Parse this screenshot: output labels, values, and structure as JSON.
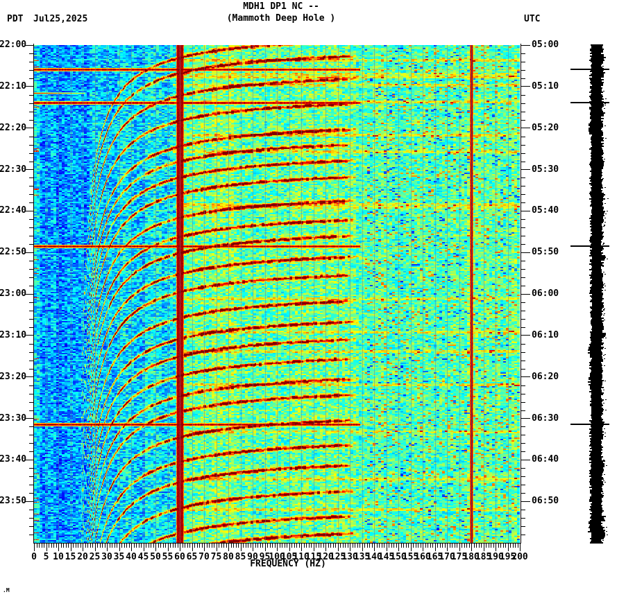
{
  "header": {
    "title_line1": "MDH1 DP1 NC --",
    "title_line2": "(Mammoth Deep Hole )",
    "left_timezone": "PDT",
    "date": "Jul25,2025",
    "right_timezone": "UTC"
  },
  "footer_mark": ".M",
  "axes": {
    "x": {
      "label": "FREQUENCY (HZ)",
      "min_hz": 0,
      "max_hz": 200,
      "major_tick_step_hz": 5,
      "minor_tick_step_hz": 1,
      "tick_labels": [
        "0",
        "5",
        "10",
        "15",
        "20",
        "25",
        "30",
        "35",
        "40",
        "45",
        "50",
        "55",
        "60",
        "65",
        "70",
        "75",
        "80",
        "85",
        "90",
        "95",
        "100",
        "105",
        "110",
        "115",
        "120",
        "125",
        "130",
        "135",
        "140",
        "145",
        "150",
        "155",
        "160",
        "165",
        "170",
        "175",
        "180",
        "185",
        "190",
        "195",
        "200"
      ]
    },
    "y_left": {
      "timezone": "PDT",
      "major_tick_step_min": 10,
      "minor_tick_step_min": 2,
      "tick_labels": [
        "22:00",
        "22:10",
        "22:20",
        "22:30",
        "22:40",
        "22:50",
        "23:00",
        "23:10",
        "23:20",
        "23:30",
        "23:40",
        "23:50"
      ]
    },
    "y_right": {
      "timezone": "UTC",
      "major_tick_step_min": 10,
      "minor_tick_step_min": 2,
      "tick_labels": [
        "05:00",
        "05:10",
        "05:20",
        "05:30",
        "05:40",
        "05:50",
        "06:00",
        "06:10",
        "06:20",
        "06:30",
        "06:40",
        "06:50"
      ]
    }
  },
  "chart_data": {
    "type": "heatmap",
    "subtype": "seismic-spectrogram",
    "station": "MDH1 DP1 NC",
    "site": "Mammoth Deep Hole",
    "title": "MDH1 DP1 NC -- (Mammoth Deep Hole )",
    "xlabel": "FREQUENCY (HZ)",
    "x_range_hz": [
      0,
      200
    ],
    "time_start_pdt": "22:00",
    "time_end_pdt": "24:00",
    "time_start_utc": "05:00",
    "time_end_utc": "07:00",
    "duration_min": 120,
    "grid": "vertical gridlines every 5 Hz",
    "legend_position": "none",
    "colormap": "jet (blue-cyan-green-yellow-red-darkred)",
    "background_regions": [
      {
        "band_hz": [
          0,
          20
        ],
        "appearance": "blue-cyan low energy"
      },
      {
        "band_hz": [
          20,
          58
        ],
        "appearance": "cyan low-mid energy"
      },
      {
        "band_hz": [
          58,
          134
        ],
        "appearance": "yellow-green mid energy with dark-red event arcs"
      },
      {
        "band_hz": [
          134,
          200
        ],
        "appearance": "teal-green speckle with yellow streak rows"
      }
    ],
    "hum_lines": [
      {
        "freq_hz": 60,
        "width_hz": 2.5,
        "color": "#8b0000"
      },
      {
        "freq_hz": 180,
        "width_hz": 0.8,
        "color": "#8b0000"
      }
    ],
    "strong_broadband_events_min_after_start": [
      5.9,
      13.9,
      48.5,
      91.4
    ],
    "low_freq_event_min_after_start": 11.6,
    "repeating_event_arcs": {
      "description": "hyperbolic glide arcs, steep near 20 Hz flattening toward 134 Hz",
      "first_event_min": -3.6,
      "mean_period_min": 4.9,
      "glide_asymptote_hz": 16,
      "glide_k_hz_min": 289,
      "max_freq_hz": 134.5
    },
    "amplitude_strip": {
      "description": "clipped black helicorder amplitude strip",
      "marker_lines_min_after_start": [
        5.9,
        13.9,
        48.5,
        91.4
      ]
    }
  },
  "colors": {
    "background": "#ffffff",
    "text": "#000000",
    "hum_line": "#8b0000",
    "gridline": "#6e78a0",
    "marker_line": "#000000",
    "strip": "#000000"
  }
}
